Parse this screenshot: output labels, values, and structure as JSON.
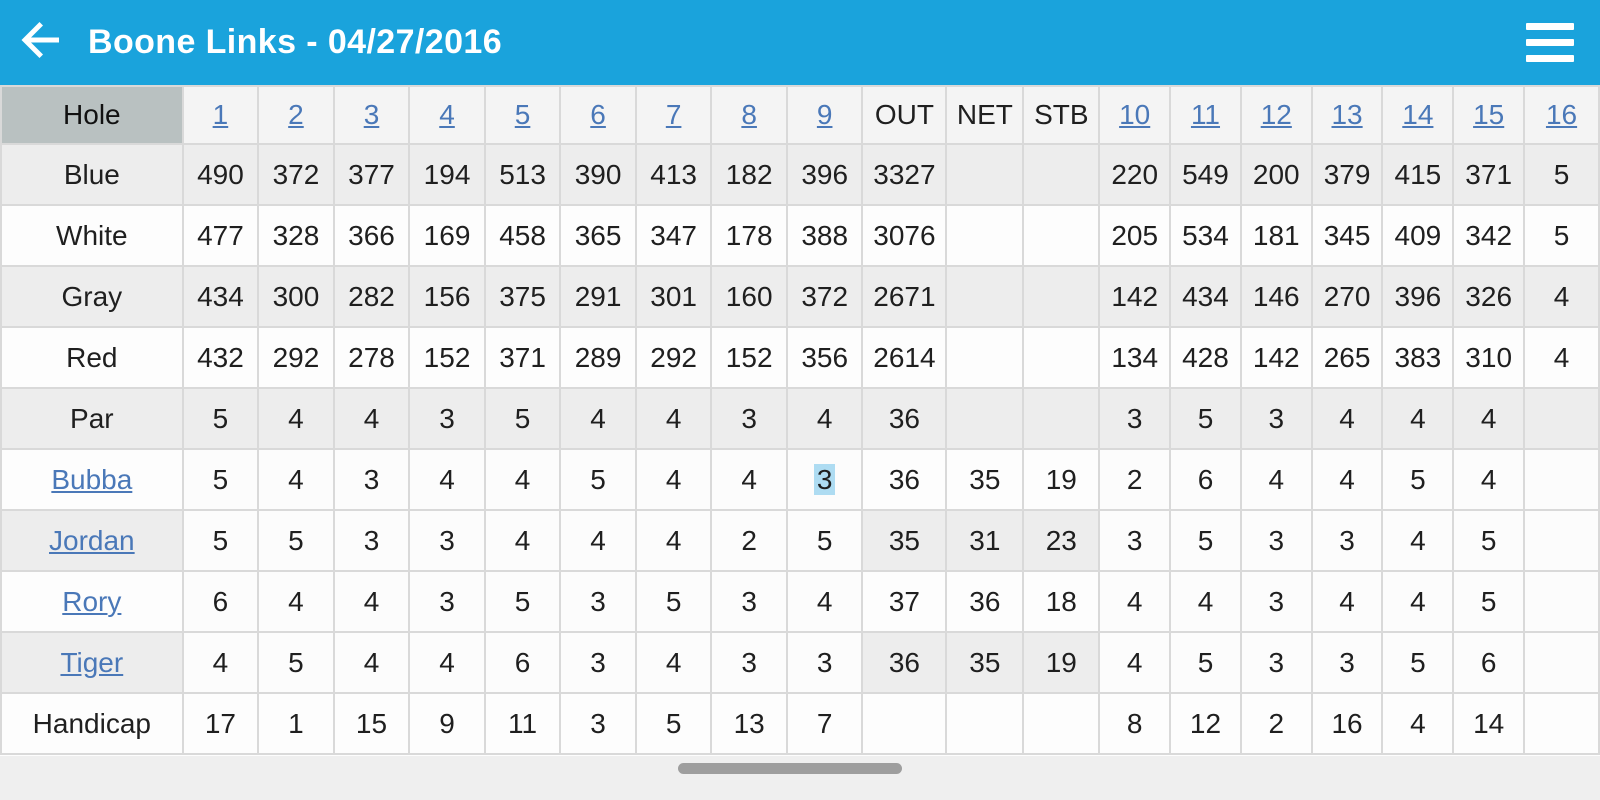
{
  "app_bar": {
    "title": "Boone Links - 04/27/2016",
    "back_icon": "back-arrow",
    "menu_icon": "hamburger-menu"
  },
  "colors": {
    "app_bar_blue": "#1aa3dc",
    "hole_corner_cell": "#b9c1c1",
    "link_blue": "#4a78b8",
    "selection_highlight": "#aedcf2",
    "row_alt_gray": "#ededed",
    "scrollbar_thumb": "#9e9e9e"
  },
  "table": {
    "columns": [
      {
        "key": "label",
        "label": "Hole",
        "link": false
      },
      {
        "key": "h1",
        "label": "1",
        "link": true
      },
      {
        "key": "h2",
        "label": "2",
        "link": true
      },
      {
        "key": "h3",
        "label": "3",
        "link": true
      },
      {
        "key": "h4",
        "label": "4",
        "link": true
      },
      {
        "key": "h5",
        "label": "5",
        "link": true
      },
      {
        "key": "h6",
        "label": "6",
        "link": true
      },
      {
        "key": "h7",
        "label": "7",
        "link": true
      },
      {
        "key": "h8",
        "label": "8",
        "link": true
      },
      {
        "key": "h9",
        "label": "9",
        "link": true
      },
      {
        "key": "out",
        "label": "OUT",
        "link": false
      },
      {
        "key": "net",
        "label": "NET",
        "link": false
      },
      {
        "key": "stb",
        "label": "STB",
        "link": false
      },
      {
        "key": "h10",
        "label": "10",
        "link": true
      },
      {
        "key": "h11",
        "label": "11",
        "link": true
      },
      {
        "key": "h12",
        "label": "12",
        "link": true
      },
      {
        "key": "h13",
        "label": "13",
        "link": true
      },
      {
        "key": "h14",
        "label": "14",
        "link": true
      },
      {
        "key": "h15",
        "label": "15",
        "link": true
      },
      {
        "key": "h16",
        "label": "16",
        "link": true
      }
    ],
    "rows": [
      {
        "label": "Blue",
        "kind": "tee",
        "cells": [
          "490",
          "372",
          "377",
          "194",
          "513",
          "390",
          "413",
          "182",
          "396",
          "3327",
          "",
          "",
          "220",
          "549",
          "200",
          "379",
          "415",
          "371",
          "5"
        ]
      },
      {
        "label": "White",
        "kind": "tee",
        "cells": [
          "477",
          "328",
          "366",
          "169",
          "458",
          "365",
          "347",
          "178",
          "388",
          "3076",
          "",
          "",
          "205",
          "534",
          "181",
          "345",
          "409",
          "342",
          "5"
        ]
      },
      {
        "label": "Gray",
        "kind": "tee",
        "cells": [
          "434",
          "300",
          "282",
          "156",
          "375",
          "291",
          "301",
          "160",
          "372",
          "2671",
          "",
          "",
          "142",
          "434",
          "146",
          "270",
          "396",
          "326",
          "4"
        ]
      },
      {
        "label": "Red",
        "kind": "tee",
        "cells": [
          "432",
          "292",
          "278",
          "152",
          "371",
          "289",
          "292",
          "152",
          "356",
          "2614",
          "",
          "",
          "134",
          "428",
          "142",
          "265",
          "383",
          "310",
          "4"
        ]
      },
      {
        "label": "Par",
        "kind": "par",
        "cells": [
          "5",
          "4",
          "4",
          "3",
          "5",
          "4",
          "4",
          "3",
          "4",
          "36",
          "",
          "",
          "3",
          "5",
          "3",
          "4",
          "4",
          "4",
          ""
        ]
      },
      {
        "label": "Bubba",
        "kind": "player",
        "cells": [
          "5",
          "4",
          "3",
          "4",
          "4",
          "5",
          "4",
          "4",
          "3",
          "36",
          "35",
          "19",
          "2",
          "6",
          "4",
          "4",
          "5",
          "4",
          ""
        ]
      },
      {
        "label": "Jordan",
        "kind": "player",
        "cells": [
          "5",
          "5",
          "3",
          "3",
          "4",
          "4",
          "4",
          "2",
          "5",
          "35",
          "31",
          "23",
          "3",
          "5",
          "3",
          "3",
          "4",
          "5",
          ""
        ]
      },
      {
        "label": "Rory",
        "kind": "player",
        "cells": [
          "6",
          "4",
          "4",
          "3",
          "5",
          "3",
          "5",
          "3",
          "4",
          "37",
          "36",
          "18",
          "4",
          "4",
          "3",
          "4",
          "4",
          "5",
          ""
        ]
      },
      {
        "label": "Tiger",
        "kind": "player",
        "cells": [
          "4",
          "5",
          "4",
          "4",
          "6",
          "3",
          "4",
          "3",
          "3",
          "36",
          "35",
          "19",
          "4",
          "5",
          "3",
          "3",
          "5",
          "6",
          ""
        ]
      },
      {
        "label": "Handicap",
        "kind": "handicap",
        "cells": [
          "17",
          "1",
          "15",
          "9",
          "11",
          "3",
          "5",
          "13",
          "7",
          "",
          "",
          "",
          "8",
          "12",
          "2",
          "16",
          "4",
          "14",
          ""
        ]
      }
    ],
    "selection": {
      "player": "Bubba",
      "hole": "9",
      "value": "3"
    }
  }
}
